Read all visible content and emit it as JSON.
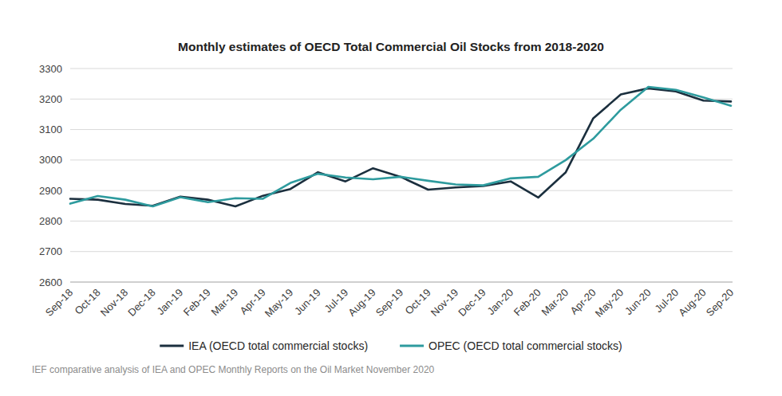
{
  "chart_data": {
    "type": "line",
    "title": "Monthly estimates of OECD Total Commercial Oil Stocks from 2018-2020",
    "source": "IEF comparative analysis of IEA and OPEC Monthly Reports on the Oil Market November 2020",
    "categories": [
      "Sep-18",
      "Oct-18",
      "Nov-18",
      "Dec-18",
      "Jan-19",
      "Feb-19",
      "Mar-19",
      "Apr-19",
      "May-19",
      "Jun-19",
      "Jul-19",
      "Aug-19",
      "Sep-19",
      "Oct-19",
      "Nov-19",
      "Dec-19",
      "Jan-20",
      "Feb-20",
      "Mar-20",
      "Apr-20",
      "May-20",
      "Jun-20",
      "Jul-20",
      "Aug-20",
      "Sep-20"
    ],
    "series": [
      {
        "name": "IEA (OECD total commercial stocks)",
        "color": "#1b2f3e",
        "values": [
          2873,
          2870,
          2856,
          2850,
          2880,
          2870,
          2848,
          2883,
          2905,
          2960,
          2930,
          2973,
          2945,
          2903,
          2910,
          2915,
          2930,
          2877,
          2960,
          3137,
          3215,
          3235,
          3225,
          3195,
          3192
        ]
      },
      {
        "name": "OPEC (OECD total commercial stocks)",
        "color": "#2e9b9e",
        "values": [
          2857,
          2882,
          2870,
          2848,
          2878,
          2862,
          2875,
          2873,
          2925,
          2955,
          2943,
          2937,
          2945,
          2932,
          2920,
          2917,
          2940,
          2945,
          3000,
          3070,
          3165,
          3240,
          3230,
          3205,
          3178
        ]
      }
    ],
    "ylim": [
      2600,
      3300
    ],
    "yticks": [
      2600,
      2700,
      2800,
      2900,
      3000,
      3100,
      3200,
      3300
    ],
    "grid": true,
    "legend": "bottom"
  }
}
